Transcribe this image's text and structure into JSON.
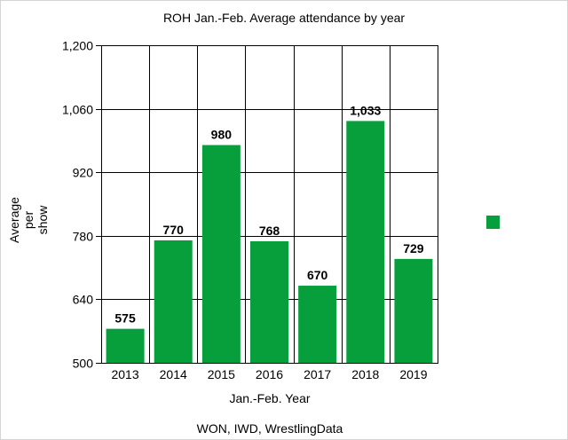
{
  "chart_data": {
    "type": "bar",
    "title": "ROH Jan.-Feb. Average attendance by year",
    "xlabel": "Jan.-Feb. Year",
    "ylabel_lines": [
      "Average",
      "per",
      "show"
    ],
    "source": "WON, IWD, WrestlingData",
    "categories": [
      "2013",
      "2014",
      "2015",
      "2016",
      "2017",
      "2018",
      "2019"
    ],
    "values": [
      575,
      770,
      980,
      768,
      670,
      1033,
      729
    ],
    "data_labels": [
      "575",
      "770",
      "980",
      "768",
      "670",
      "1,033",
      "729"
    ],
    "ylim": [
      500,
      1200
    ],
    "yticks": [
      500,
      640,
      780,
      920,
      1060,
      1200
    ],
    "ytick_labels": [
      "500",
      "640",
      "780",
      "920",
      "1,060",
      "1,200"
    ],
    "grid": true,
    "legend": "right",
    "colors": {
      "bar": "#079f3c",
      "grid": "#000000"
    }
  }
}
